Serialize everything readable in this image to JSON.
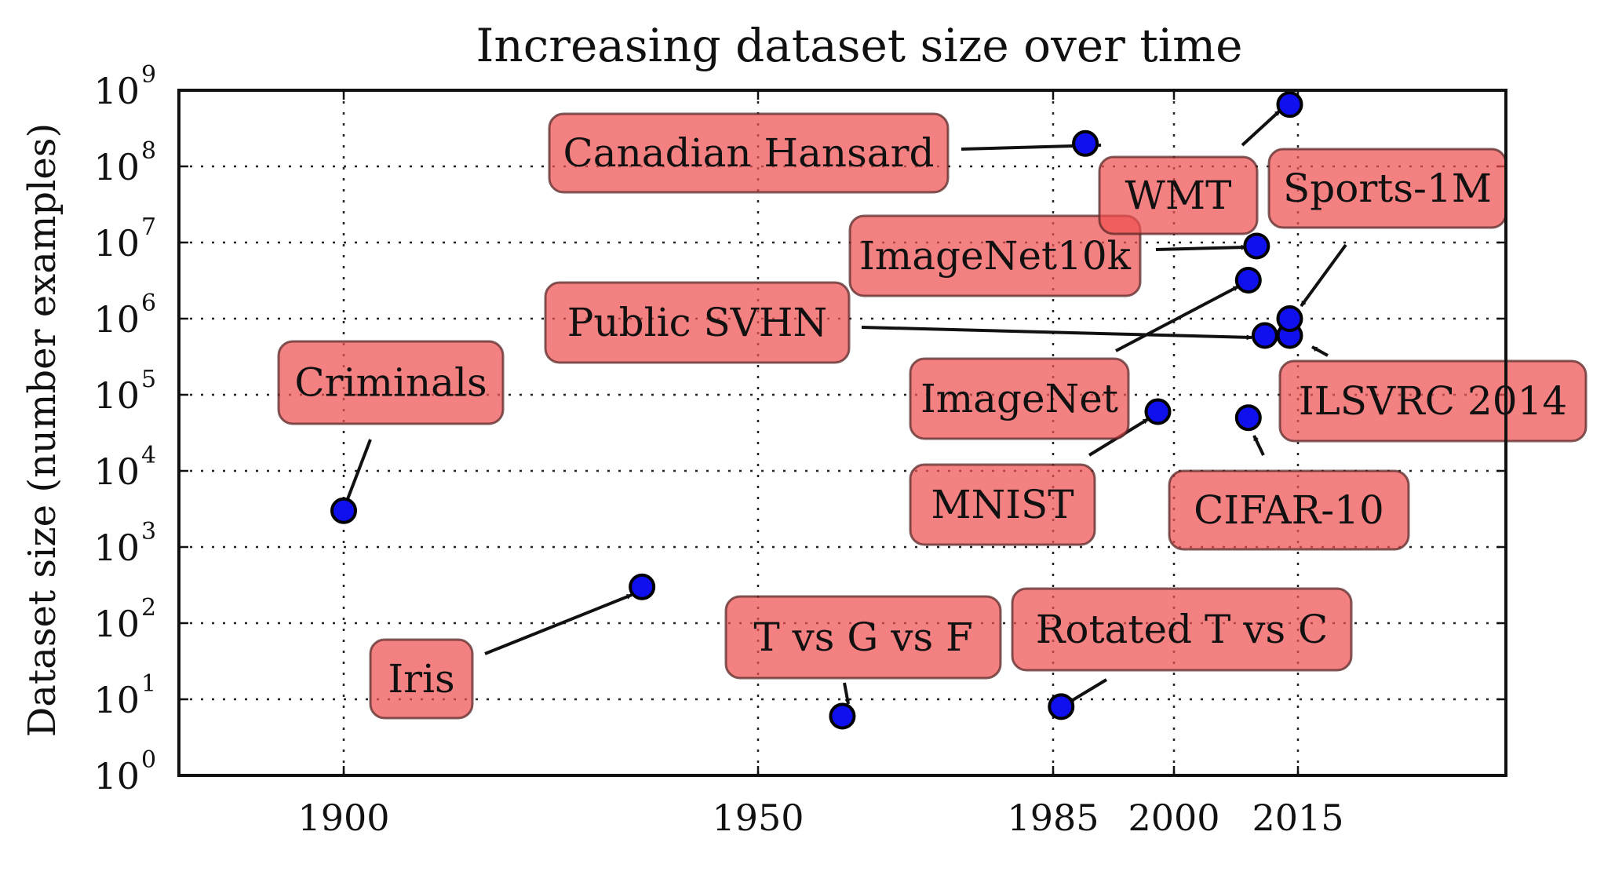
{
  "chart_data": {
    "type": "scatter",
    "title": "Increasing dataset size over time",
    "xlabel": "",
    "ylabel": "Dataset size (number examples)",
    "xscale": "linear",
    "yscale": "log",
    "xlim": [
      1880,
      2040
    ],
    "ylim": [
      1,
      1000000000
    ],
    "xticks": [
      {
        "value": 1900,
        "label": "1900"
      },
      {
        "value": 1950,
        "label": "1950"
      },
      {
        "value": 1985,
        "label": "1985"
      },
      {
        "value": 2000,
        "label": "2000"
      },
      {
        "value": 2015,
        "label": "2015"
      }
    ],
    "yticks_exponents": [
      0,
      1,
      2,
      3,
      4,
      5,
      6,
      7,
      8,
      9
    ],
    "ytick_base": "10",
    "grid": true,
    "points": [
      {
        "name": "Criminals",
        "year": 1900,
        "value": 3000
      },
      {
        "name": "Iris",
        "year": 1936,
        "value": 300
      },
      {
        "name": "T vs G vs F",
        "year": 1960,
        "value": 6
      },
      {
        "name": "Rotated T vs C",
        "year": 1986,
        "value": 8
      },
      {
        "name": "Canadian Hansard",
        "year": 1989,
        "value": 200000000
      },
      {
        "name": "MNIST",
        "year": 1998,
        "value": 60000
      },
      {
        "name": "CIFAR-10",
        "year": 2009,
        "value": 50000
      },
      {
        "name": "ImageNet",
        "year": 2009,
        "value": 3200000
      },
      {
        "name": "ImageNet10k",
        "year": 2010,
        "value": 9000000
      },
      {
        "name": "Public SVHN",
        "year": 2011,
        "value": 600000
      },
      {
        "name": "ILSVRC 2014",
        "year": 2014,
        "value": 600000
      },
      {
        "name": "Sports-1M",
        "year": 2014,
        "value": 1000000
      },
      {
        "name": "WMT",
        "year": 2014,
        "value": 650000000
      }
    ]
  }
}
